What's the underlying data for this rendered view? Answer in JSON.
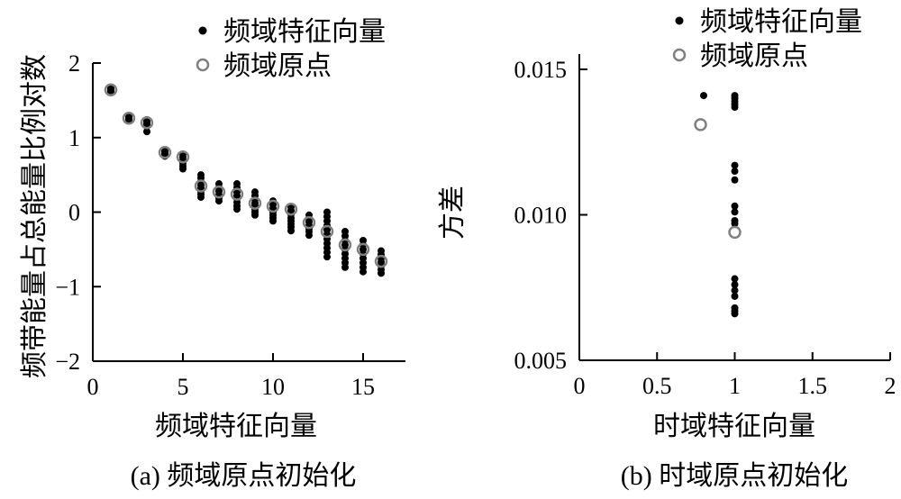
{
  "chart_data": [
    {
      "id": "a",
      "type": "scatter",
      "caption": "(a) 频域原点初始化",
      "xlabel": "频域特征向量",
      "ylabel": "频带能量占总能量比例对数",
      "xlim": [
        0,
        17
      ],
      "ylim": [
        -2,
        2
      ],
      "xticks": [
        0,
        5,
        10,
        15
      ],
      "yticks": [
        -2,
        -1,
        0,
        1,
        2
      ],
      "xtick_labels": [
        "0",
        "5",
        "10",
        "15"
      ],
      "ytick_labels": [
        "−2",
        "−1",
        "0",
        "1",
        "2"
      ],
      "legend": {
        "position": "top-right",
        "entries": [
          "频域特征向量",
          "频域原点"
        ]
      },
      "series": [
        {
          "name": "频域特征向量",
          "marker": "filled-dot",
          "color": "#000000",
          "points": [
            [
              1,
              1.66
            ],
            [
              1,
              1.64
            ],
            [
              1,
              1.62
            ],
            [
              1,
              1.6
            ],
            [
              2,
              1.28
            ],
            [
              2,
              1.26
            ],
            [
              2,
              1.24
            ],
            [
              3,
              1.24
            ],
            [
              3,
              1.21
            ],
            [
              3,
              1.18
            ],
            [
              3,
              1.15
            ],
            [
              3,
              1.08
            ],
            [
              4,
              0.82
            ],
            [
              4,
              0.8
            ],
            [
              4,
              0.78
            ],
            [
              4,
              0.75
            ],
            [
              5,
              0.78
            ],
            [
              5,
              0.74
            ],
            [
              5,
              0.7
            ],
            [
              5,
              0.66
            ],
            [
              5,
              0.62
            ],
            [
              5,
              0.58
            ],
            [
              6,
              0.5
            ],
            [
              6,
              0.46
            ],
            [
              6,
              0.41
            ],
            [
              6,
              0.36
            ],
            [
              6,
              0.32
            ],
            [
              6,
              0.28
            ],
            [
              6,
              0.24
            ],
            [
              6,
              0.2
            ],
            [
              7,
              0.38
            ],
            [
              7,
              0.33
            ],
            [
              7,
              0.28
            ],
            [
              7,
              0.23
            ],
            [
              7,
              0.19
            ],
            [
              7,
              0.15
            ],
            [
              8,
              0.38
            ],
            [
              8,
              0.33
            ],
            [
              8,
              0.27
            ],
            [
              8,
              0.22
            ],
            [
              8,
              0.18
            ],
            [
              8,
              0.13
            ],
            [
              8,
              0.08
            ],
            [
              8,
              0.04
            ],
            [
              9,
              0.27
            ],
            [
              9,
              0.22
            ],
            [
              9,
              0.17
            ],
            [
              9,
              0.12
            ],
            [
              9,
              0.08
            ],
            [
              9,
              0.04
            ],
            [
              9,
              0.0
            ],
            [
              9,
              -0.04
            ],
            [
              10,
              0.15
            ],
            [
              10,
              0.1
            ],
            [
              10,
              0.05
            ],
            [
              10,
              0.0
            ],
            [
              10,
              -0.04
            ],
            [
              10,
              -0.08
            ],
            [
              10,
              -0.12
            ],
            [
              11,
              0.07
            ],
            [
              11,
              0.02
            ],
            [
              11,
              -0.03
            ],
            [
              11,
              -0.08
            ],
            [
              11,
              -0.12
            ],
            [
              11,
              -0.16
            ],
            [
              11,
              -0.2
            ],
            [
              11,
              -0.25
            ],
            [
              12,
              -0.04
            ],
            [
              12,
              -0.09
            ],
            [
              12,
              -0.13
            ],
            [
              12,
              -0.18
            ],
            [
              12,
              -0.22
            ],
            [
              12,
              -0.26
            ],
            [
              12,
              -0.31
            ],
            [
              13,
              0.0
            ],
            [
              13,
              -0.06
            ],
            [
              13,
              -0.12
            ],
            [
              13,
              -0.18
            ],
            [
              13,
              -0.24
            ],
            [
              13,
              -0.3
            ],
            [
              13,
              -0.36
            ],
            [
              13,
              -0.42
            ],
            [
              13,
              -0.48
            ],
            [
              13,
              -0.54
            ],
            [
              13,
              -0.6
            ],
            [
              14,
              -0.26
            ],
            [
              14,
              -0.32
            ],
            [
              14,
              -0.38
            ],
            [
              14,
              -0.44
            ],
            [
              14,
              -0.5
            ],
            [
              14,
              -0.56
            ],
            [
              14,
              -0.62
            ],
            [
              14,
              -0.68
            ],
            [
              14,
              -0.74
            ],
            [
              15,
              -0.38
            ],
            [
              15,
              -0.44
            ],
            [
              15,
              -0.5
            ],
            [
              15,
              -0.56
            ],
            [
              15,
              -0.62
            ],
            [
              15,
              -0.68
            ],
            [
              15,
              -0.74
            ],
            [
              15,
              -0.8
            ],
            [
              16,
              -0.52
            ],
            [
              16,
              -0.57
            ],
            [
              16,
              -0.62
            ],
            [
              16,
              -0.67
            ],
            [
              16,
              -0.72
            ],
            [
              16,
              -0.77
            ],
            [
              16,
              -0.82
            ]
          ]
        },
        {
          "name": "频域原点",
          "marker": "open-circle",
          "color": "#808080",
          "points": [
            [
              1,
              1.64
            ],
            [
              2,
              1.26
            ],
            [
              3,
              1.2
            ],
            [
              4,
              0.8
            ],
            [
              5,
              0.74
            ],
            [
              6,
              0.35
            ],
            [
              7,
              0.27
            ],
            [
              8,
              0.24
            ],
            [
              9,
              0.12
            ],
            [
              10,
              0.08
            ],
            [
              11,
              0.04
            ],
            [
              12,
              -0.14
            ],
            [
              13,
              -0.26
            ],
            [
              14,
              -0.44
            ],
            [
              15,
              -0.5
            ],
            [
              16,
              -0.66
            ]
          ]
        }
      ]
    },
    {
      "id": "b",
      "type": "scatter",
      "caption": "(b) 时域原点初始化",
      "xlabel": "时域特征向量",
      "ylabel": "方差",
      "xlim": [
        0,
        2
      ],
      "ylim": [
        0.005,
        0.015
      ],
      "xticks": [
        0,
        0.5,
        1,
        1.5,
        2
      ],
      "yticks": [
        0.005,
        0.01,
        0.015
      ],
      "xtick_labels": [
        "0",
        "0.5",
        "1",
        "1.5",
        "2"
      ],
      "ytick_labels": [
        "0.005",
        "0.010",
        "0.015"
      ],
      "legend": {
        "position": "top-right",
        "entries": [
          "频域特征向量",
          "频域原点"
        ]
      },
      "series": [
        {
          "name": "频域特征向量",
          "marker": "filled-dot",
          "color": "#000000",
          "points": [
            [
              0.8,
              0.0141
            ],
            [
              1,
              0.0141
            ],
            [
              1,
              0.014
            ],
            [
              1,
              0.0139
            ],
            [
              1,
              0.0138
            ],
            [
              1,
              0.0137
            ],
            [
              1,
              0.0117
            ],
            [
              1,
              0.0115
            ],
            [
              1,
              0.0112
            ],
            [
              1,
              0.0103
            ],
            [
              1,
              0.0101
            ],
            [
              1,
              0.0098
            ],
            [
              1,
              0.0097
            ],
            [
              1,
              0.0078
            ],
            [
              1,
              0.0076
            ],
            [
              1,
              0.0074
            ],
            [
              1,
              0.0072
            ],
            [
              1,
              0.0068
            ],
            [
              1,
              0.0067
            ],
            [
              1,
              0.0066
            ]
          ]
        },
        {
          "name": "频域原点",
          "marker": "open-circle",
          "color": "#808080",
          "points": [
            [
              0.78,
              0.0131
            ],
            [
              1,
              0.0094
            ]
          ]
        }
      ]
    }
  ]
}
